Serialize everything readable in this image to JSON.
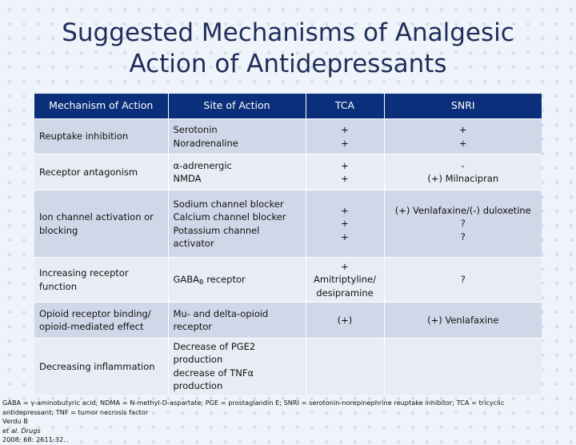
{
  "title": {
    "line1": "Suggested Mechanisms of Analgesic",
    "line2": "Action of Antidepressants"
  },
  "table": {
    "headers": [
      "Mechanism of Action",
      "Site of Action",
      "TCA",
      "SNRI"
    ],
    "rows": [
      {
        "mechanism": [
          "Reuptake inhibition"
        ],
        "site": [
          "Serotonin",
          "Noradrenaline"
        ],
        "tca": [
          "+",
          "+"
        ],
        "snri": [
          "+",
          "+"
        ]
      },
      {
        "mechanism": [
          "Receptor antagonism"
        ],
        "site": [
          "α-adrenergic",
          "NMDA"
        ],
        "tca": [
          "+",
          "+"
        ],
        "snri": [
          "-",
          "(+) Milnacipran"
        ]
      },
      {
        "mechanism": [
          "Ion channel activation or",
          "blocking"
        ],
        "site": [
          "Sodium channel blocker",
          "Calcium channel blocker",
          "Potassium channel activator"
        ],
        "tca": [
          "+",
          "+",
          "+"
        ],
        "snri": [
          "(+) Venlafaxine/(-) duloxetine",
          "?",
          "?"
        ]
      },
      {
        "mechanism": [
          "Increasing receptor",
          "function"
        ],
        "site_main": "GABA",
        "site_sub": "B",
        "site_tail": " receptor",
        "tca": [
          "+",
          "Amitriptyline/",
          "desipramine"
        ],
        "snri": [
          "?"
        ]
      },
      {
        "mechanism": [
          "Opioid receptor binding/",
          "opioid-mediated effect"
        ],
        "site": [
          "Mu- and delta-opioid",
          "receptor"
        ],
        "tca": [
          "(+)"
        ],
        "snri": [
          "(+) Venlafaxine"
        ]
      },
      {
        "mechanism": [
          "Decreasing inflammation"
        ],
        "site": [
          "Decrease of PGE2",
          "production",
          "decrease of TNFα",
          "production"
        ],
        "tca": [],
        "snri": []
      }
    ]
  },
  "footnote": {
    "line1": "GABA = γ-aminobutyric acid; NDMA = N-methyl-D-aspartate; PGE = prostaglandin E; SNRI = serotonin-norepinephrine reuptake inhibitor; TCA = tricyclic",
    "line2": "antidepressant; TNF = tumor necrosis factor",
    "ref_author": "Verdu B ",
    "ref_etal": "et al. Drugs",
    "ref_tail": " 2008; 68: 2611-32."
  }
}
